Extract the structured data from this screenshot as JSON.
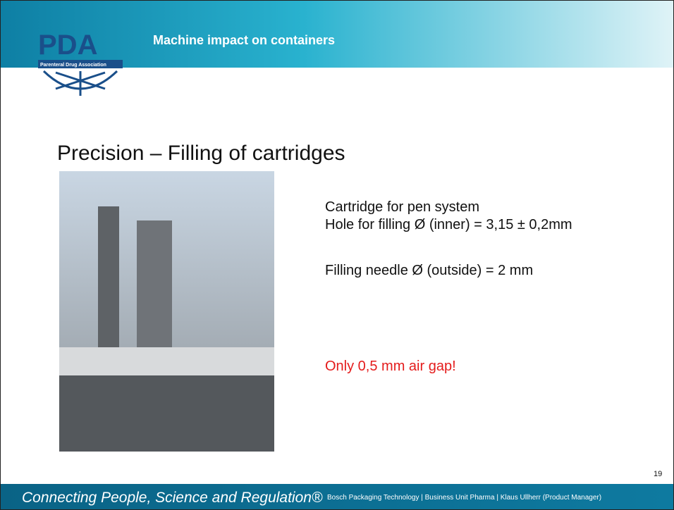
{
  "header": {
    "logo": "PDA",
    "logo_subtitle": "Parenteral Drug Association",
    "title": "Machine impact on containers"
  },
  "heading": "Precision – Filling of cartridges",
  "lines": [
    "Cartridge for pen system",
    "Hole for filling Ø (inner) = 3,15 ± 0,2mm",
    "Filling needle Ø (outside) = 2 mm"
  ],
  "highlight": "Only 0,5 mm air gap!",
  "page_number": "19",
  "footer": {
    "tagline": "Connecting People, Science and Regulation®",
    "credit": "Bosch Packaging Technology | Business Unit Pharma | Klaus Ullherr (Product Manager)"
  }
}
